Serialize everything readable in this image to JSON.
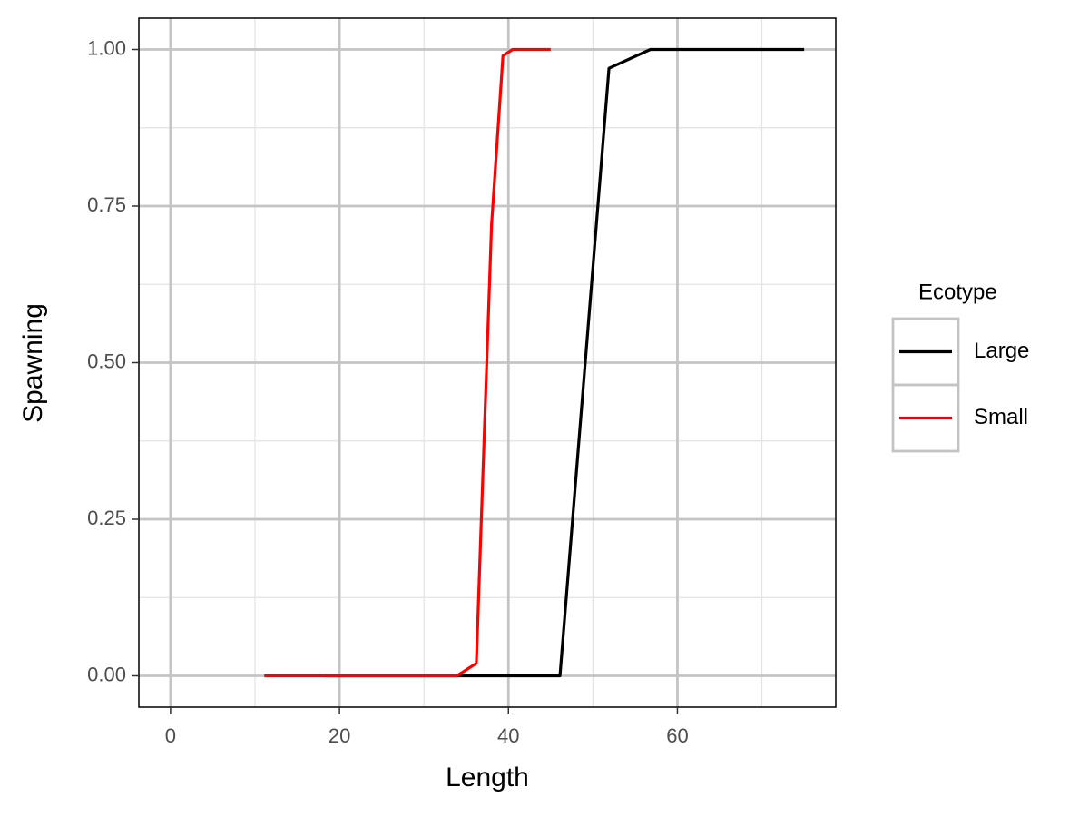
{
  "chart_data": {
    "type": "line",
    "xlabel": "Length",
    "ylabel": "Spawning",
    "legend_title": "Ecotype",
    "legend": "right",
    "series": [
      {
        "name": "Large",
        "color": "#000000",
        "x": [
          18.3,
          46.1,
          51.9,
          56.8,
          75
        ],
        "values": [
          0,
          0,
          0.97,
          1,
          1
        ]
      },
      {
        "name": "Small",
        "color": "#ff0000",
        "x": [
          11.1,
          33.9,
          36.2,
          38.0,
          39.35,
          40.5,
          45
        ],
        "values": [
          0,
          0,
          0.02,
          0.72,
          0.99,
          1,
          1
        ]
      }
    ],
    "xlim": [
      -3.75,
      78.75
    ],
    "xticks": [
      0,
      20,
      40,
      60
    ],
    "xminorticks": [
      10,
      30,
      50,
      70
    ],
    "ylim": [
      -0.05,
      1.05
    ],
    "yticks": [
      {
        "value": 0,
        "label": "0.00"
      },
      {
        "value": 0.25,
        "label": "0.25"
      },
      {
        "value": 0.5,
        "label": "0.50"
      },
      {
        "value": 0.75,
        "label": "0.75"
      },
      {
        "value": 1,
        "label": "1.00"
      }
    ],
    "yminorticks": [
      0.125,
      0.375,
      0.625,
      0.875
    ],
    "grid": true
  }
}
